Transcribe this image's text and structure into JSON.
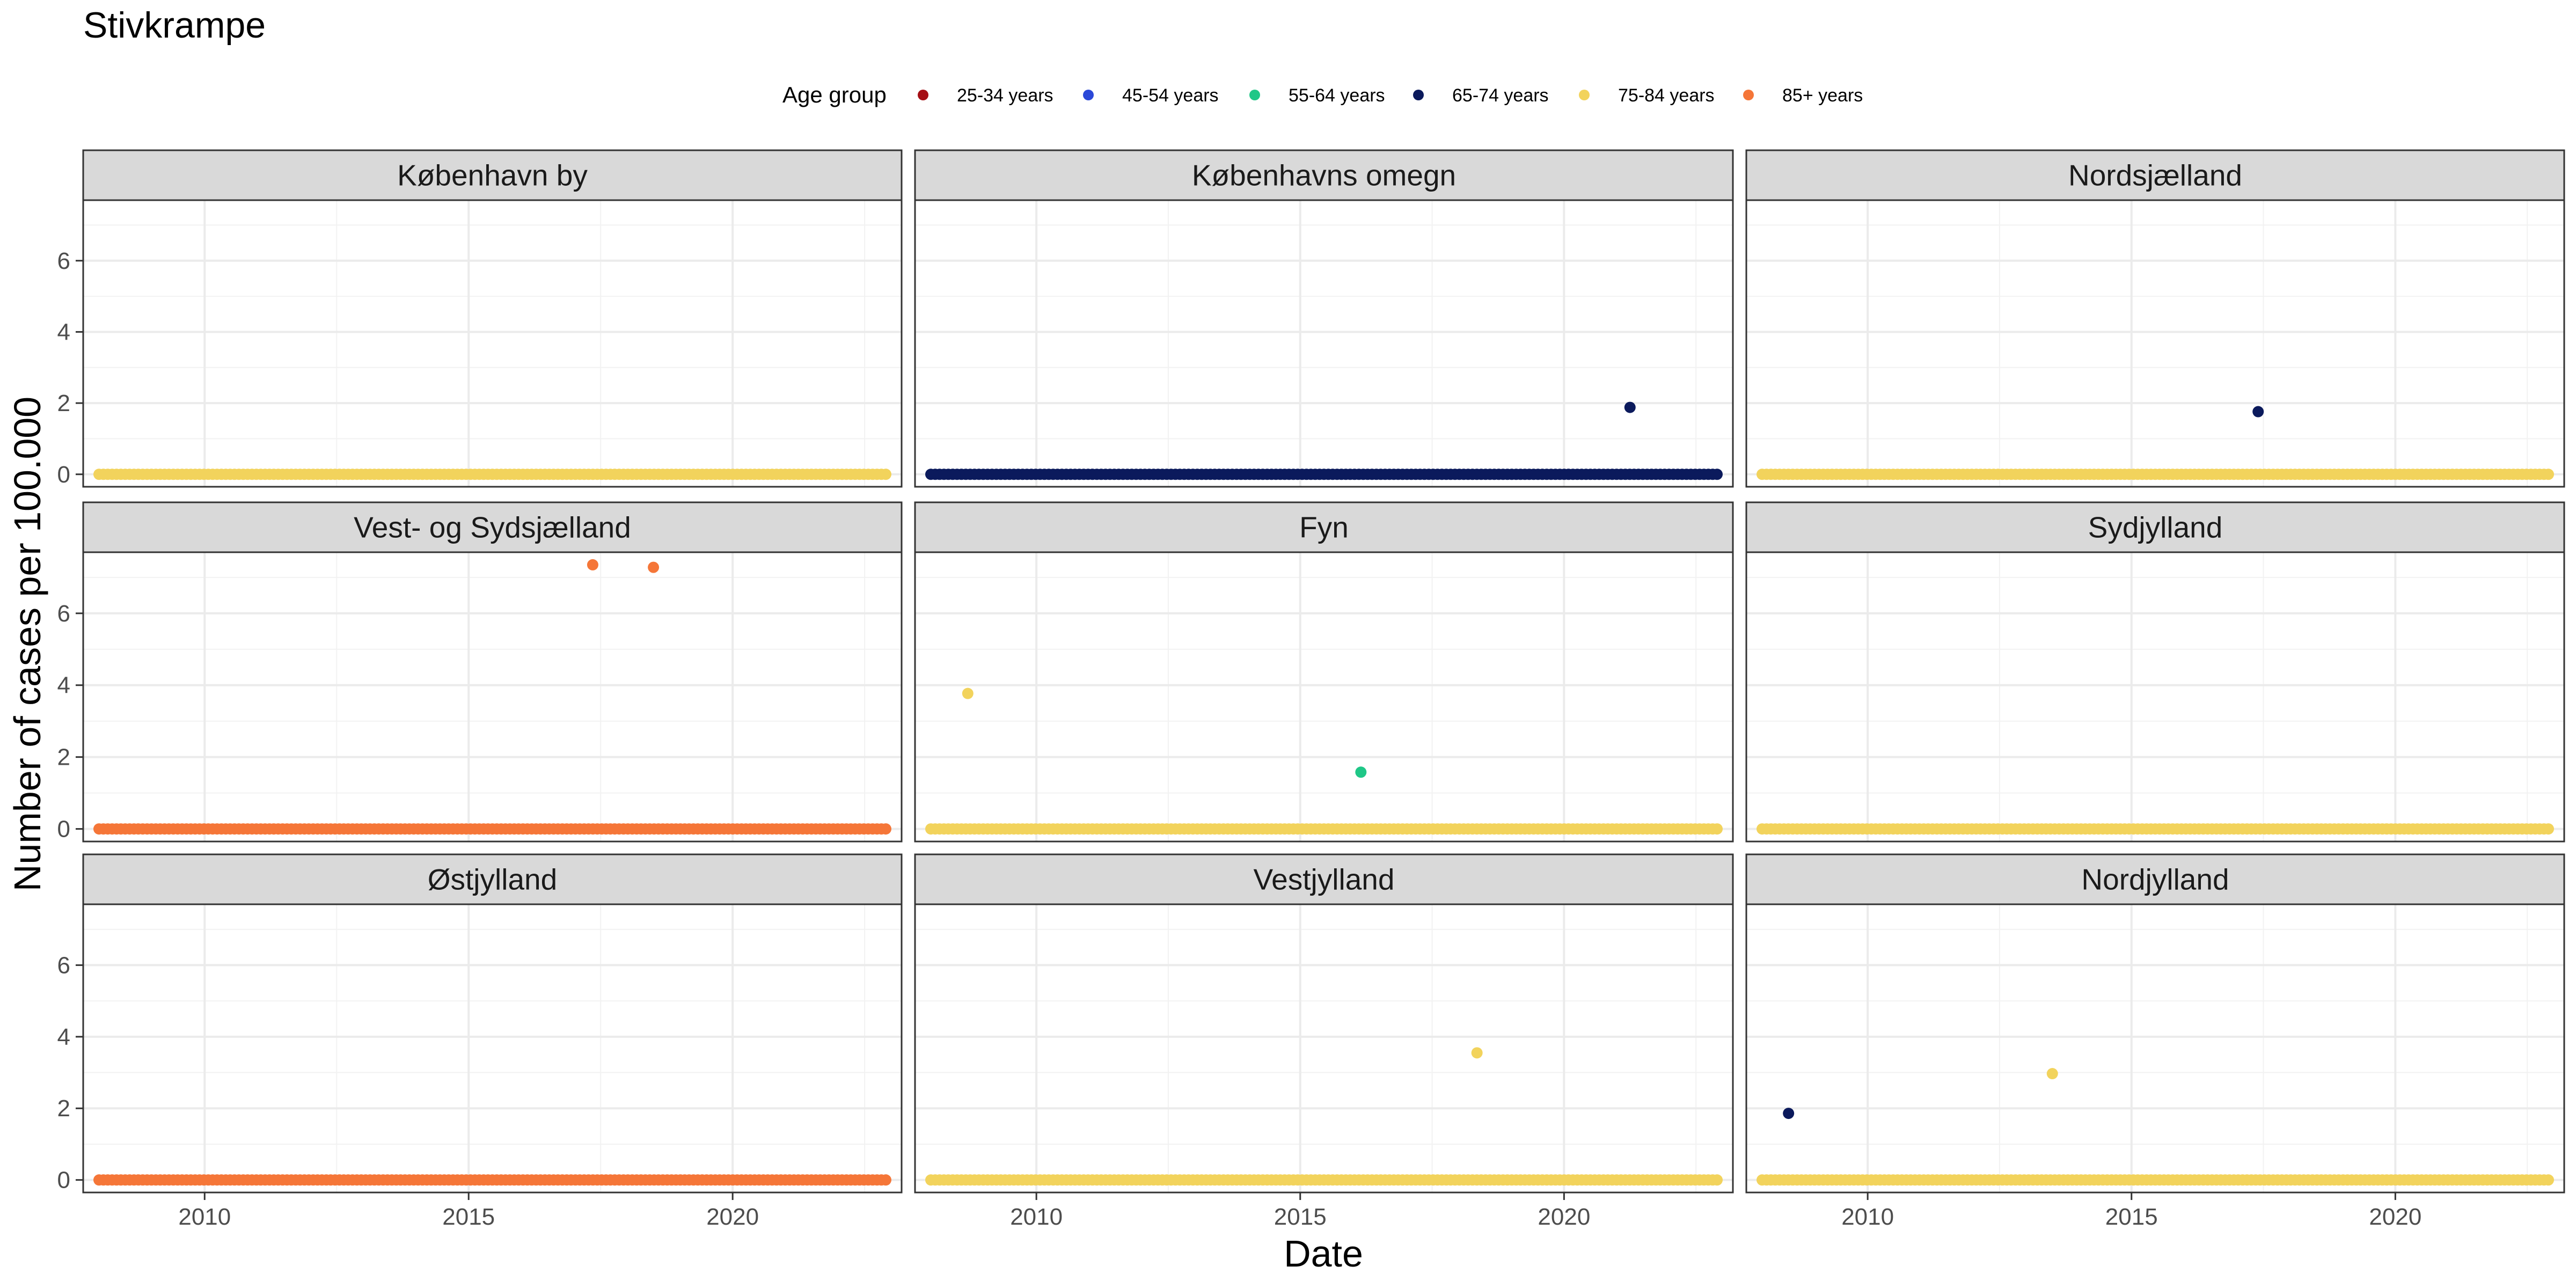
{
  "chart_data": {
    "type": "scatter",
    "title": "Stivkrampe",
    "xlabel": "Date",
    "ylabel": "Number of cases per 100.000",
    "xlim": [
      2007.7,
      2023.2
    ],
    "ylim": [
      -0.35,
      7.7
    ],
    "x_ticks": [
      2010,
      2015,
      2020
    ],
    "y_ticks": [
      0,
      2,
      4,
      6
    ],
    "grid": true,
    "legend": {
      "title": "Age group",
      "position": "top",
      "entries": [
        {
          "label": "25-34 years",
          "color": "#a50f15"
        },
        {
          "label": "45-54 years",
          "color": "#2b48d8"
        },
        {
          "label": "55-64 years",
          "color": "#1fc787"
        },
        {
          "label": "65-74 years",
          "color": "#0b1a5c"
        },
        {
          "label": "75-84 years",
          "color": "#f2d35c"
        },
        {
          "label": "85+ years",
          "color": "#f57638"
        }
      ]
    },
    "panels": [
      {
        "title": "København by",
        "baseline": {
          "age_group": "75-84 years",
          "x_range": [
            2008.0,
            2022.9
          ],
          "value": 0
        },
        "points": []
      },
      {
        "title": "Københavns omegn",
        "baseline": {
          "age_group": "65-74 years",
          "x_range": [
            2008.0,
            2022.9
          ],
          "value": 0
        },
        "points": [
          {
            "x": 2021.25,
            "y": 1.88,
            "age_group": "65-74 years"
          }
        ]
      },
      {
        "title": "Nordsjælland",
        "baseline": {
          "age_group": "75-84 years",
          "x_range": [
            2008.0,
            2022.9
          ],
          "value": 0
        },
        "points": [
          {
            "x": 2017.4,
            "y": 1.76,
            "age_group": "65-74 years"
          }
        ]
      },
      {
        "title": "Vest- og Sydsjælland",
        "baseline": {
          "age_group": "85+ years",
          "x_range": [
            2008.0,
            2022.9
          ],
          "value": 0
        },
        "points": [
          {
            "x": 2017.35,
            "y": 7.35,
            "age_group": "85+ years"
          },
          {
            "x": 2018.5,
            "y": 7.28,
            "age_group": "85+ years"
          }
        ]
      },
      {
        "title": "Fyn",
        "baseline": {
          "age_group": "75-84 years",
          "x_range": [
            2008.0,
            2022.9
          ],
          "value": 0
        },
        "points": [
          {
            "x": 2008.7,
            "y": 3.77,
            "age_group": "75-84 years"
          },
          {
            "x": 2016.15,
            "y": 1.58,
            "age_group": "55-64 years"
          }
        ]
      },
      {
        "title": "Sydjylland",
        "baseline": {
          "age_group": "75-84 years",
          "x_range": [
            2008.0,
            2022.9
          ],
          "value": 0
        },
        "points": []
      },
      {
        "title": "Østjylland",
        "baseline": {
          "age_group": "85+ years",
          "x_range": [
            2008.0,
            2022.9
          ],
          "value": 0
        },
        "points": []
      },
      {
        "title": "Vestjylland",
        "baseline": {
          "age_group": "75-84 years",
          "x_range": [
            2008.0,
            2022.9
          ],
          "value": 0
        },
        "points": [
          {
            "x": 2018.35,
            "y": 3.55,
            "age_group": "75-84 years"
          }
        ]
      },
      {
        "title": "Nordjylland",
        "baseline": {
          "age_group": "75-84 years",
          "x_range": [
            2008.0,
            2022.9
          ],
          "value": 0
        },
        "points": [
          {
            "x": 2008.5,
            "y": 1.86,
            "age_group": "65-74 years"
          },
          {
            "x": 2013.5,
            "y": 2.97,
            "age_group": "75-84 years"
          }
        ]
      }
    ]
  }
}
